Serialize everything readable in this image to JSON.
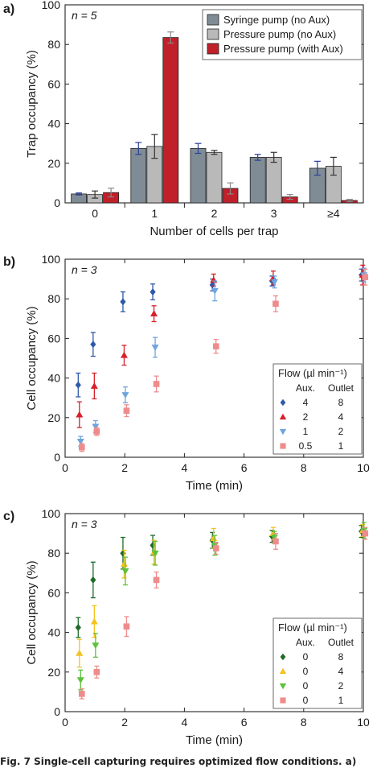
{
  "caption": "Fig. 7  Single-cell capturing requires optimized flow conditions. a)",
  "panels": [
    {
      "label": "a)",
      "n_text": "n = 5",
      "chart_data": {
        "type": "bar",
        "categories": [
          "0",
          "1",
          "2",
          "3",
          "≥4"
        ],
        "xlabel": "Number of cells per trap",
        "ylabel": "Trap occupancy (%)",
        "ylim": [
          0,
          100
        ],
        "yticks": [
          0,
          20,
          40,
          60,
          80,
          100
        ],
        "legend_position": "top-right",
        "series": [
          {
            "name": "Syringe pump (no Aux)",
            "color": "#7f8c95",
            "errcolor": "#2a3f9a",
            "values": [
              4.5,
              27.5,
              27.5,
              23,
              17.5
            ],
            "errors": [
              0.5,
              3,
              2.5,
              1.5,
              3.5
            ]
          },
          {
            "name": "Pressure pump (no Aux)",
            "color": "#b9b9b9",
            "errcolor": "#333333",
            "values": [
              4.2,
              28.5,
              25.5,
              23,
              18.5
            ],
            "errors": [
              1.8,
              6,
              1,
              2.5,
              4.5
            ]
          },
          {
            "name": "Pressure pump (with Aux)",
            "color": "#c0202a",
            "errcolor": "#8a8a8a",
            "values": [
              5.2,
              83.5,
              7.3,
              3,
              1.2
            ],
            "errors": [
              2.2,
              2.8,
              2.8,
              1.2,
              0.6
            ]
          }
        ]
      }
    },
    {
      "label": "b)",
      "n_text": "n = 3",
      "chart_data": {
        "type": "scatter",
        "xlabel": "Time (min)",
        "ylabel": "Cell occupancy (%)",
        "xlim": [
          0,
          10
        ],
        "ylim": [
          0,
          100
        ],
        "xticks": [
          0,
          2,
          4,
          6,
          8,
          10
        ],
        "yticks": [
          0,
          20,
          40,
          60,
          80,
          100
        ],
        "legend_title": "Flow (µl min⁻¹)",
        "legend_cols": [
          "Aux.",
          "Outlet"
        ],
        "legend_position": "bottom-right",
        "series": [
          {
            "aux": "4",
            "outlet": "8",
            "marker": "diamond",
            "color": "#2f5aa8",
            "x": [
              0.5,
              1,
              2,
              3,
              5,
              7,
              10
            ],
            "y": [
              36.5,
              57,
              78.5,
              83.5,
              87,
              89,
              92
            ],
            "err": [
              6,
              6,
              5,
              4,
              3,
              2.5,
              3
            ]
          },
          {
            "aux": "2",
            "outlet": "4",
            "marker": "triangle-up",
            "color": "#d7202a",
            "x": [
              0.5,
              1,
              2,
              3,
              5,
              7,
              10
            ],
            "y": [
              21.5,
              36,
              51.5,
              72.5,
              89.5,
              90.5,
              92
            ],
            "err": [
              6.5,
              6.5,
              5,
              4,
              3,
              3.5,
              5
            ]
          },
          {
            "aux": "1",
            "outlet": "2",
            "marker": "triangle-down",
            "color": "#6fa4dc",
            "x": [
              0.5,
              1,
              2,
              3,
              5,
              7,
              10
            ],
            "y": [
              8,
              15.5,
              31.5,
              55.5,
              84,
              88.5,
              92
            ],
            "err": [
              2.5,
              3,
              4,
              5,
              5,
              3,
              3.5
            ]
          },
          {
            "aux": "0.5",
            "outlet": "1",
            "marker": "square",
            "color": "#ee8c8c",
            "x": [
              0.5,
              1,
              2,
              3,
              5,
              7,
              10
            ],
            "y": [
              5,
              13,
              23.5,
              37,
              56,
              77.5,
              91
            ],
            "err": [
              2,
              2,
              3,
              4,
              3.5,
              4,
              4
            ]
          }
        ]
      }
    },
    {
      "label": "c)",
      "n_text": "n = 3",
      "chart_data": {
        "type": "scatter",
        "xlabel": "Time (min)",
        "ylabel": "Cell occupancy (%)",
        "xlim": [
          0,
          10
        ],
        "ylim": [
          0,
          100
        ],
        "xticks": [
          0,
          2,
          4,
          6,
          8,
          10
        ],
        "yticks": [
          0,
          20,
          40,
          60,
          80,
          100
        ],
        "legend_title": "Flow (µl min⁻¹)",
        "legend_cols": [
          "Aux.",
          "Outlet"
        ],
        "legend_position": "bottom-right",
        "series": [
          {
            "aux": "0",
            "outlet": "8",
            "marker": "diamond",
            "color": "#1f6b2a",
            "x": [
              0.5,
              1,
              2,
              3,
              5,
              7,
              10
            ],
            "y": [
              42.5,
              66.5,
              80,
              84,
              86.5,
              88.5,
              91
            ],
            "err": [
              5,
              9,
              8,
              5,
              4,
              3,
              3
            ]
          },
          {
            "aux": "0",
            "outlet": "4",
            "marker": "triangle-up",
            "color": "#f4c21e",
            "x": [
              0.5,
              1,
              2,
              3,
              5,
              7,
              10
            ],
            "y": [
              29.5,
              45.5,
              74.5,
              80.5,
              87.5,
              90,
              91.5
            ],
            "err": [
              7,
              8,
              7,
              6,
              5,
              3,
              3
            ]
          },
          {
            "aux": "0",
            "outlet": "2",
            "marker": "triangle-down",
            "color": "#5cc23a",
            "x": [
              0.5,
              1,
              2,
              3,
              5,
              7,
              10
            ],
            "y": [
              16,
              33.5,
              71,
              80,
              84,
              88,
              91.5
            ],
            "err": [
              5,
              6,
              7,
              6,
              5,
              3,
              4
            ]
          },
          {
            "aux": "0",
            "outlet": "1",
            "marker": "square",
            "color": "#ee8c8c",
            "x": [
              0.5,
              1,
              2,
              3,
              5,
              7,
              10
            ],
            "y": [
              9,
              20,
              43,
              66.5,
              82.5,
              86,
              90
            ],
            "err": [
              2.5,
              3,
              5,
              4,
              3,
              4,
              3
            ]
          }
        ]
      }
    }
  ]
}
